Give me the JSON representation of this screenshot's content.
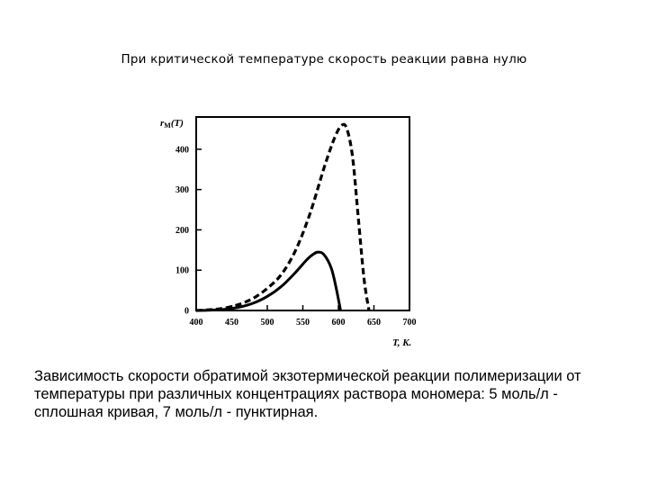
{
  "slide": {
    "title": "При критической температуре скорость реакции равна нулю",
    "caption": "Зависимость скорости обратимой экзотермической реакции полимеризации от температуры при различных концентрациях раствора мономера: 5 моль/л - сплошная кривая, 7 моль/л - пунктирная."
  },
  "chart_data": {
    "type": "line",
    "title": "",
    "xlabel": "T, K.",
    "ylabel": "r_M(T)",
    "ylabel_main": "r",
    "ylabel_sub": "M",
    "ylabel_arg": "(T)",
    "xlim": [
      400,
      700
    ],
    "ylim": [
      0,
      480
    ],
    "x_ticks": [
      400,
      450,
      500,
      550,
      600,
      650,
      700
    ],
    "y_ticks": [
      0,
      100,
      200,
      300,
      400
    ],
    "grid": false,
    "legend": "none",
    "series": [
      {
        "style": "solid",
        "x": [
          400,
          420,
          440,
          460,
          480,
          500,
          520,
          540,
          555,
          565,
          572,
          580,
          590,
          597,
          603
        ],
        "y": [
          0,
          1,
          3,
          8,
          18,
          35,
          60,
          95,
          125,
          140,
          145,
          138,
          105,
          55,
          0
        ]
      },
      {
        "style": "dashed",
        "x": [
          400,
          420,
          440,
          460,
          480,
          500,
          520,
          540,
          560,
          580,
          595,
          605,
          612,
          620,
          628,
          636,
          643
        ],
        "y": [
          0,
          2,
          6,
          15,
          30,
          55,
          90,
          150,
          240,
          355,
          430,
          460,
          450,
          380,
          230,
          80,
          0
        ]
      }
    ]
  }
}
